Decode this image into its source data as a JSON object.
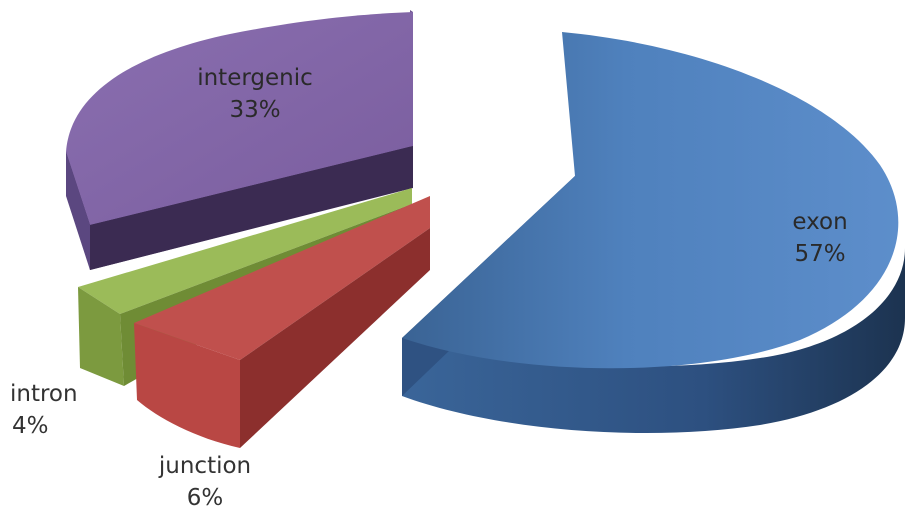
{
  "chart_data": {
    "type": "pie",
    "style": "3d-exploded",
    "title": "",
    "slices": [
      {
        "label": "exon",
        "value": 57,
        "display": "57%",
        "color": "#4f81bd"
      },
      {
        "label": "junction",
        "value": 6,
        "display": "6%",
        "color": "#c0504d"
      },
      {
        "label": "intron",
        "value": 4,
        "display": "4%",
        "color": "#9bbb59"
      },
      {
        "label": "intergenic",
        "value": 33,
        "display": "33%",
        "color": "#8064a2"
      }
    ]
  }
}
